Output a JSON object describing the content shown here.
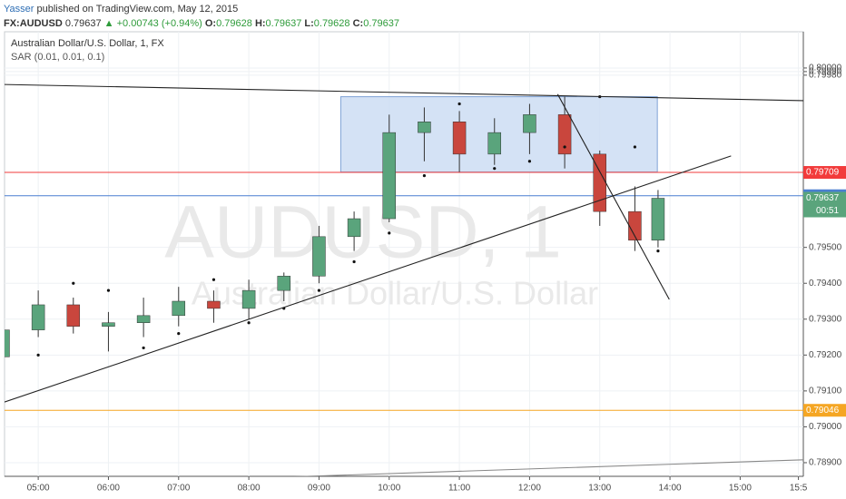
{
  "header": {
    "author": "Yasser",
    "published": "published on TradingView.com, May 12, 2015"
  },
  "quote": {
    "symbol": "FX:AUDUSD",
    "last": "0.79637",
    "change": "▲ +0.00743 (+0.94%)",
    "open_label": "O:",
    "open": "0.79628",
    "high_label": "H:",
    "high": "0.79637",
    "low_label": "L:",
    "low": "0.79628",
    "close_label": "C:",
    "close": "0.79637"
  },
  "chart_data": {
    "type": "candlestick",
    "title": "Australian Dollar/U.S. Dollar, 1, FX",
    "indicator": "SAR (0.01, 0.01, 0.1)",
    "watermark": "AUDUSD, 1",
    "watermark_subtitle": "Australian Dollar/U.S. Dollar",
    "x": [
      4.5,
      5.0,
      5.5,
      6.0,
      6.5,
      7.0,
      7.5,
      8.0,
      8.5,
      9.0,
      9.5,
      10.0,
      10.5,
      11.0,
      11.5,
      12.0,
      12.5,
      13.0,
      13.5,
      13.83
    ],
    "open": [
      0.79195,
      0.7927,
      0.7934,
      0.7928,
      0.7929,
      0.7931,
      0.7935,
      0.7933,
      0.7938,
      0.7942,
      0.7953,
      0.7958,
      0.7982,
      0.7985,
      0.7976,
      0.7982,
      0.7987,
      0.7976,
      0.796,
      0.7952
    ],
    "high": [
      0.7929,
      0.7938,
      0.7936,
      0.7932,
      0.7936,
      0.7939,
      0.7938,
      0.7941,
      0.7943,
      0.7956,
      0.796,
      0.7987,
      0.7989,
      0.7988,
      0.7986,
      0.799,
      0.7992,
      0.7977,
      0.7967,
      0.7966
    ],
    "low": [
      0.7913,
      0.7925,
      0.7926,
      0.7921,
      0.7925,
      0.7928,
      0.7929,
      0.793,
      0.7935,
      0.794,
      0.7949,
      0.7957,
      0.7974,
      0.7971,
      0.7973,
      0.7976,
      0.7972,
      0.7956,
      0.7949,
      0.795
    ],
    "close": [
      0.7927,
      0.7934,
      0.7928,
      0.7929,
      0.7931,
      0.7935,
      0.7933,
      0.7938,
      0.7942,
      0.7953,
      0.7958,
      0.7982,
      0.7985,
      0.7976,
      0.7982,
      0.7987,
      0.7976,
      0.796,
      0.7952,
      0.79637
    ],
    "sar": [
      0.7912,
      0.792,
      0.794,
      0.7938,
      0.7922,
      0.7926,
      0.7941,
      0.7929,
      0.7933,
      0.7938,
      0.7946,
      0.7954,
      0.797,
      0.799,
      0.7972,
      0.7974,
      0.7978,
      0.7992,
      0.7978,
      0.7949
    ],
    "up_color": "#5aa47c",
    "down_color": "#c9463d",
    "sar_color": "#111111",
    "xlim": [
      4.52,
      15.9
    ],
    "ylim": [
      0.78862,
      0.80101
    ],
    "xticks": [
      {
        "value": 5,
        "label": "05:00"
      },
      {
        "value": 6,
        "label": "06:00"
      },
      {
        "value": 7,
        "label": "07:00"
      },
      {
        "value": 8,
        "label": "08:00"
      },
      {
        "value": 9,
        "label": "09:00"
      },
      {
        "value": 10,
        "label": "10:00"
      },
      {
        "value": 11,
        "label": "11:00"
      },
      {
        "value": 12,
        "label": "12:00"
      },
      {
        "value": 13,
        "label": "13:00"
      },
      {
        "value": 14,
        "label": "14:00"
      },
      {
        "value": 15,
        "label": "15:00"
      },
      {
        "value": 15.83,
        "label": "15:5"
      }
    ],
    "yticks": [
      {
        "value": 0.8,
        "label": "0.80000"
      },
      {
        "value": 0.7999,
        "label": "0.79990"
      },
      {
        "value": 0.7998,
        "label": "0.79980"
      },
      {
        "value": 0.795,
        "label": "0.79500"
      },
      {
        "value": 0.794,
        "label": "0.79400"
      },
      {
        "value": 0.793,
        "label": "0.79300"
      },
      {
        "value": 0.792,
        "label": "0.79200"
      },
      {
        "value": 0.791,
        "label": "0.79100"
      },
      {
        "value": 0.79,
        "label": "0.79000"
      },
      {
        "value": 0.789,
        "label": "0.78900"
      }
    ],
    "grid": true,
    "price_lines": [
      {
        "value": 0.79709,
        "color": "#f23b3b"
      },
      {
        "value": 0.79644,
        "color": "#4a7fd0"
      },
      {
        "value": 0.79046,
        "color": "#f5a623"
      }
    ],
    "last_price_color": "#5aa47c",
    "countdown": "00:51",
    "rectangle": {
      "x": [
        9.31,
        13.82
      ],
      "y": [
        0.7992,
        0.7971
      ],
      "color": "#c9dbf2"
    },
    "trend_lines": [
      {
        "x": [
          4.52,
          15.9
        ],
        "y": [
          0.79954,
          0.79909
        ]
      },
      {
        "x": [
          4.52,
          14.87
        ],
        "y": [
          0.79069,
          0.79755
        ]
      },
      {
        "x": [
          12.4,
          13.99
        ],
        "y": [
          0.79927,
          0.79355
        ]
      },
      {
        "x": [
          8.08,
          15.9
        ],
        "y": [
          0.78857,
          0.78908
        ]
      }
    ]
  }
}
